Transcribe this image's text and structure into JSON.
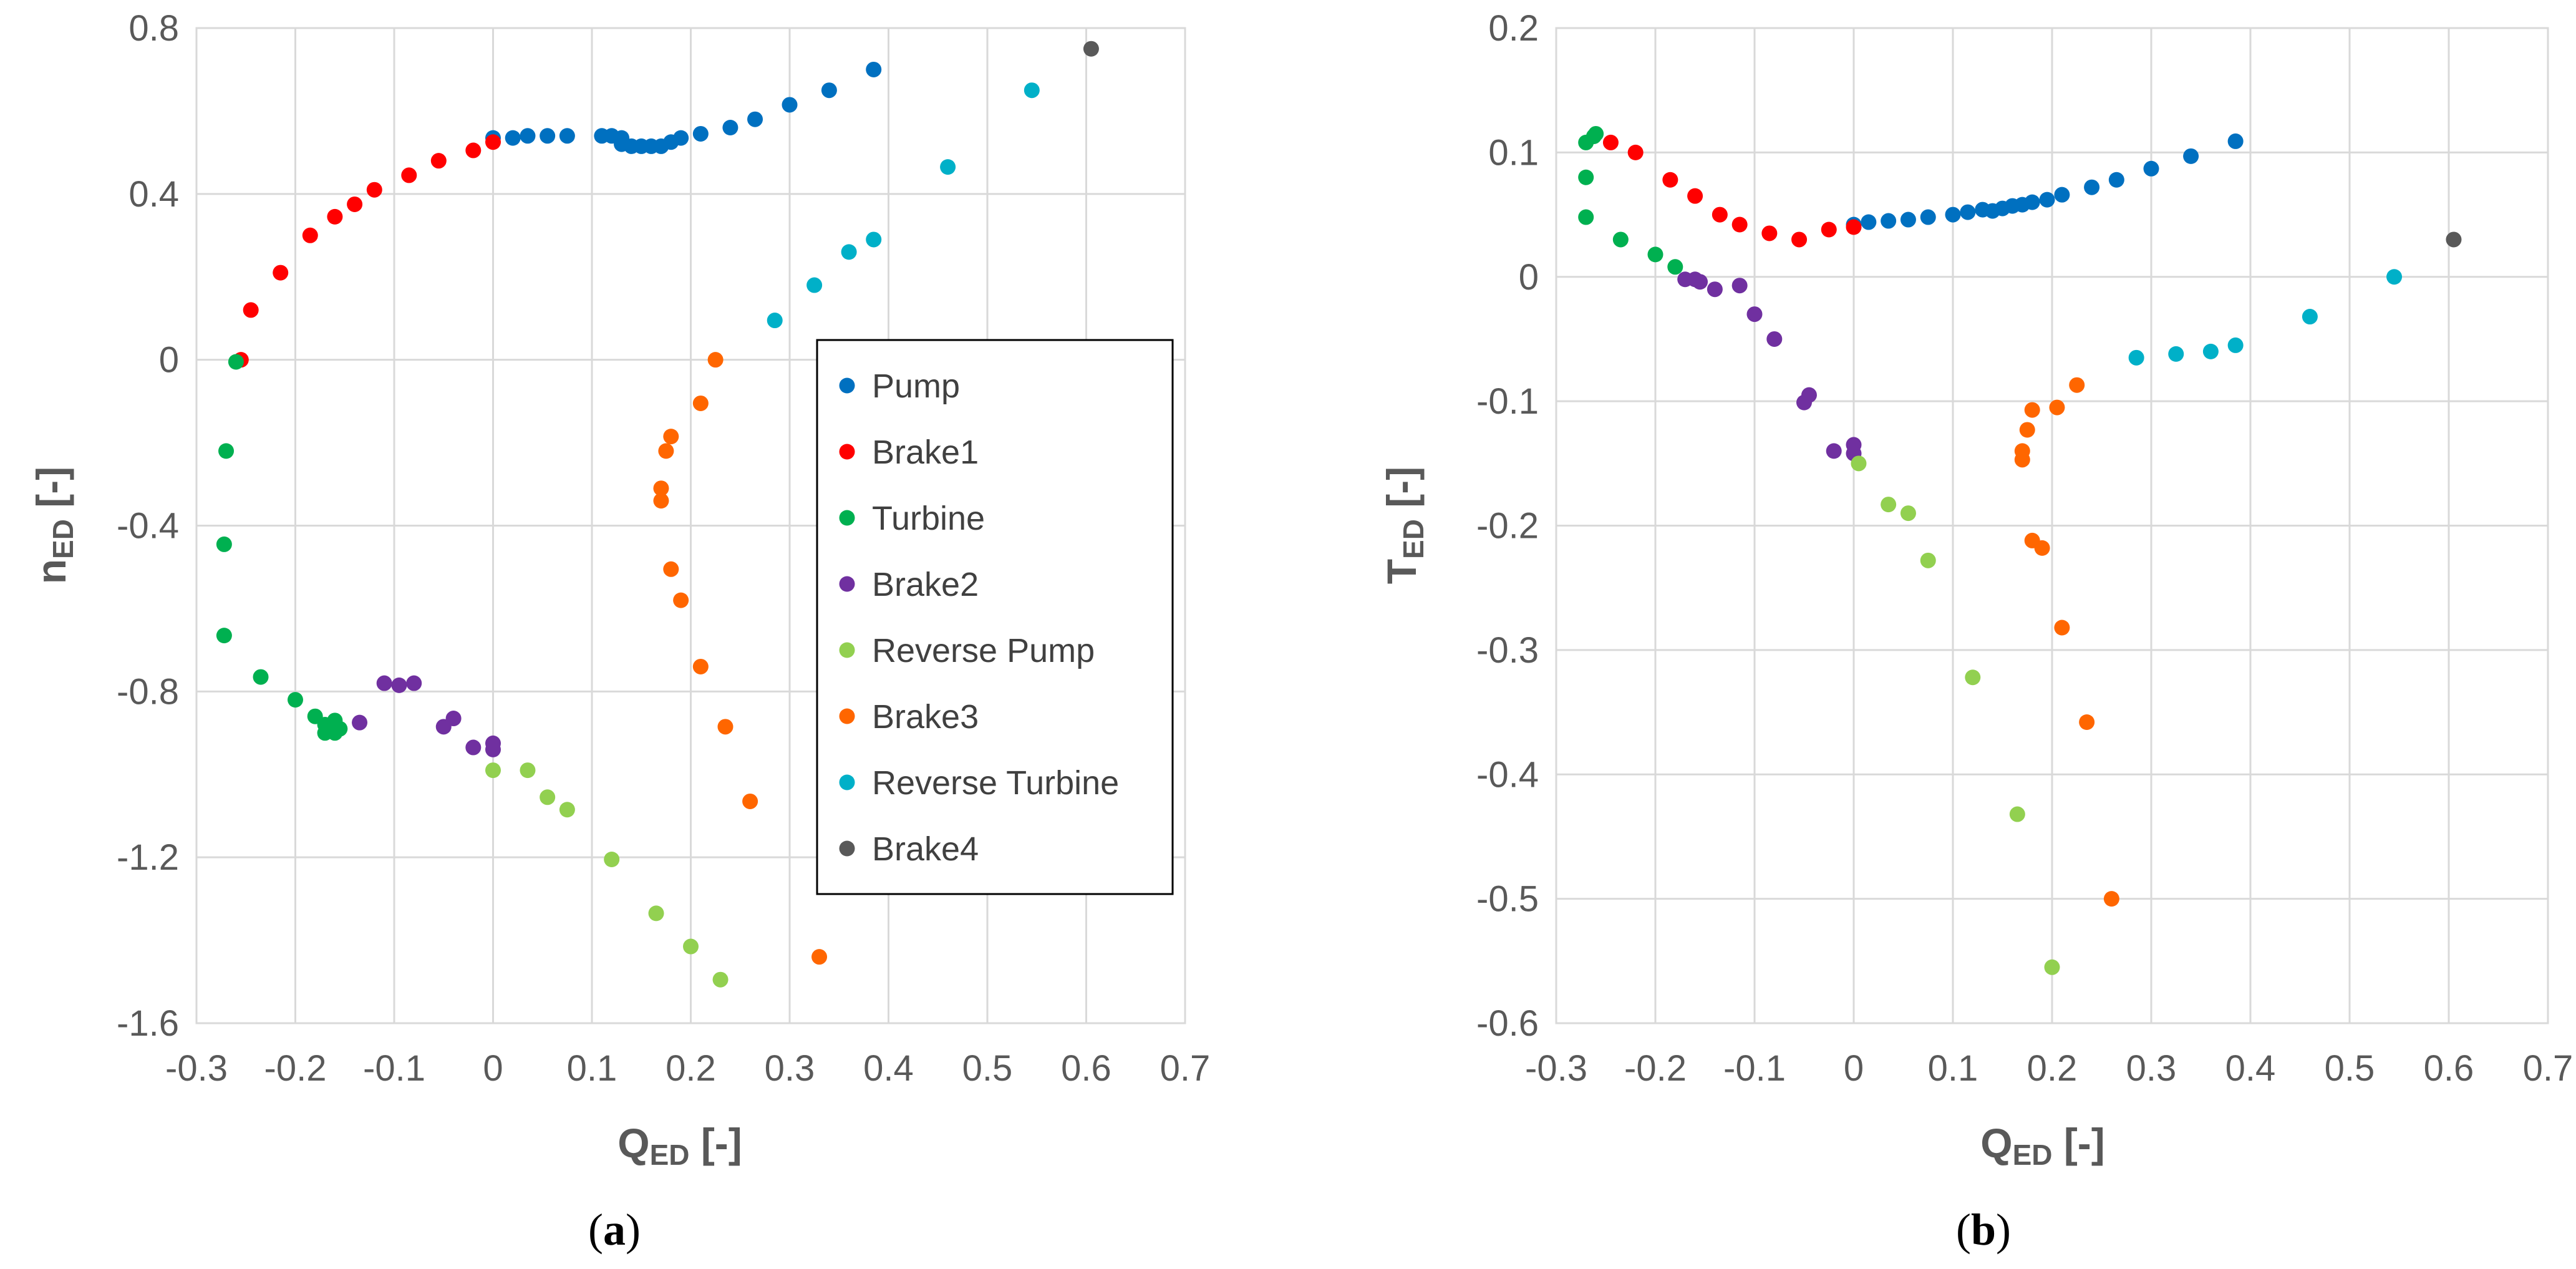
{
  "chart_data": [
    {
      "type": "scatter",
      "panel_label": "a",
      "xlabel": "Q",
      "xlabel_sub": "ED",
      "xlabel_suffix": " [-]",
      "ylabel": "n",
      "ylabel_sub": "ED",
      "ylabel_suffix": " [-]",
      "xlim": [
        -0.3,
        0.7
      ],
      "ylim": [
        -1.6,
        0.8
      ],
      "x_ticks": [
        "-0.3",
        "-0.2",
        "-0.1",
        "0",
        "0.1",
        "0.2",
        "0.3",
        "0.4",
        "0.5",
        "0.6",
        "0.7"
      ],
      "y_ticks": [
        "0.8",
        "0.4",
        "0",
        "-0.4",
        "-0.8",
        "-1.2",
        "-1.6"
      ],
      "grid": true,
      "legend_position": "center-right",
      "series": [
        {
          "name": "Pump",
          "color": "#0070C0",
          "points": [
            [
              0.0,
              0.535
            ],
            [
              0.02,
              0.535
            ],
            [
              0.035,
              0.54
            ],
            [
              0.055,
              0.54
            ],
            [
              0.075,
              0.54
            ],
            [
              0.11,
              0.54
            ],
            [
              0.12,
              0.54
            ],
            [
              0.13,
              0.535
            ],
            [
              0.13,
              0.52
            ],
            [
              0.14,
              0.515
            ],
            [
              0.15,
              0.515
            ],
            [
              0.16,
              0.515
            ],
            [
              0.17,
              0.515
            ],
            [
              0.18,
              0.525
            ],
            [
              0.19,
              0.535
            ],
            [
              0.21,
              0.545
            ],
            [
              0.24,
              0.56
            ],
            [
              0.265,
              0.58
            ],
            [
              0.3,
              0.615
            ],
            [
              0.34,
              0.65
            ],
            [
              0.385,
              0.7
            ]
          ]
        },
        {
          "name": "Brake1",
          "color": "#FF0000",
          "points": [
            [
              -0.255,
              0.0
            ],
            [
              -0.245,
              0.12
            ],
            [
              -0.215,
              0.21
            ],
            [
              -0.185,
              0.3
            ],
            [
              -0.16,
              0.345
            ],
            [
              -0.14,
              0.375
            ],
            [
              -0.12,
              0.41
            ],
            [
              -0.085,
              0.445
            ],
            [
              -0.055,
              0.48
            ],
            [
              -0.02,
              0.505
            ],
            [
              0.0,
              0.525
            ]
          ]
        },
        {
          "name": "Turbine",
          "color": "#00B050",
          "points": [
            [
              -0.26,
              -0.005
            ],
            [
              -0.27,
              -0.22
            ],
            [
              -0.272,
              -0.445
            ],
            [
              -0.272,
              -0.665
            ],
            [
              -0.235,
              -0.765
            ],
            [
              -0.2,
              -0.82
            ],
            [
              -0.18,
              -0.86
            ],
            [
              -0.17,
              -0.88
            ],
            [
              -0.165,
              -0.895
            ],
            [
              -0.16,
              -0.87
            ],
            [
              -0.155,
              -0.89
            ],
            [
              -0.16,
              -0.9
            ],
            [
              -0.17,
              -0.9
            ]
          ]
        },
        {
          "name": "Brake2",
          "color": "#7030A0",
          "points": [
            [
              -0.135,
              -0.875
            ],
            [
              -0.11,
              -0.78
            ],
            [
              -0.095,
              -0.785
            ],
            [
              -0.08,
              -0.78
            ],
            [
              -0.05,
              -0.885
            ],
            [
              -0.04,
              -0.865
            ],
            [
              -0.02,
              -0.935
            ],
            [
              0.0,
              -0.925
            ],
            [
              0.0,
              -0.94
            ]
          ]
        },
        {
          "name": "Reverse Pump",
          "color": "#92D050",
          "points": [
            [
              0.0,
              -0.99
            ],
            [
              0.035,
              -0.99
            ],
            [
              0.055,
              -1.055
            ],
            [
              0.075,
              -1.085
            ],
            [
              0.12,
              -1.205
            ],
            [
              0.165,
              -1.335
            ],
            [
              0.2,
              -1.415
            ],
            [
              0.23,
              -1.495
            ]
          ]
        },
        {
          "name": "Brake3",
          "color": "#FF6600",
          "points": [
            [
              0.225,
              0.0
            ],
            [
              0.21,
              -0.105
            ],
            [
              0.18,
              -0.185
            ],
            [
              0.175,
              -0.22
            ],
            [
              0.17,
              -0.31
            ],
            [
              0.17,
              -0.34
            ],
            [
              0.18,
              -0.505
            ],
            [
              0.19,
              -0.58
            ],
            [
              0.21,
              -0.74
            ],
            [
              0.235,
              -0.885
            ],
            [
              0.26,
              -1.065
            ],
            [
              0.33,
              -1.44
            ]
          ]
        },
        {
          "name": "Reverse Turbine",
          "color": "#00B0C8",
          "points": [
            [
              0.285,
              0.095
            ],
            [
              0.325,
              0.18
            ],
            [
              0.36,
              0.26
            ],
            [
              0.385,
              0.29
            ],
            [
              0.46,
              0.465
            ],
            [
              0.545,
              0.65
            ]
          ]
        },
        {
          "name": "Brake4",
          "color": "#595959",
          "points": [
            [
              0.605,
              0.75
            ]
          ]
        }
      ]
    },
    {
      "type": "scatter",
      "panel_label": "b",
      "xlabel": "Q",
      "xlabel_sub": "ED",
      "xlabel_suffix": " [-]",
      "ylabel": "T",
      "ylabel_sub": "ED",
      "ylabel_suffix": " [-]",
      "xlim": [
        -0.3,
        0.7
      ],
      "ylim": [
        -0.6,
        0.2
      ],
      "x_ticks": [
        "-0.3",
        "-0.2",
        "-0.1",
        "0",
        "0.1",
        "0.2",
        "0.3",
        "0.4",
        "0.5",
        "0.6",
        "0.7"
      ],
      "y_ticks": [
        "0.2",
        "0.1",
        "0",
        "-0.1",
        "-0.2",
        "-0.3",
        "-0.4",
        "-0.5",
        "-0.6"
      ],
      "grid": true,
      "legend_position": "none",
      "series": [
        {
          "name": "Pump",
          "color": "#0070C0",
          "points": [
            [
              0.0,
              0.042
            ],
            [
              0.015,
              0.044
            ],
            [
              0.035,
              0.045
            ],
            [
              0.055,
              0.046
            ],
            [
              0.075,
              0.048
            ],
            [
              0.1,
              0.05
            ],
            [
              0.115,
              0.052
            ],
            [
              0.13,
              0.054
            ],
            [
              0.14,
              0.053
            ],
            [
              0.15,
              0.055
            ],
            [
              0.16,
              0.057
            ],
            [
              0.17,
              0.058
            ],
            [
              0.18,
              0.06
            ],
            [
              0.195,
              0.062
            ],
            [
              0.21,
              0.066
            ],
            [
              0.24,
              0.072
            ],
            [
              0.265,
              0.078
            ],
            [
              0.3,
              0.087
            ],
            [
              0.34,
              0.097
            ],
            [
              0.385,
              0.109
            ]
          ]
        },
        {
          "name": "Brake1",
          "color": "#FF0000",
          "points": [
            [
              -0.245,
              0.108
            ],
            [
              -0.22,
              0.1
            ],
            [
              -0.185,
              0.078
            ],
            [
              -0.16,
              0.065
            ],
            [
              -0.135,
              0.05
            ],
            [
              -0.115,
              0.042
            ],
            [
              -0.085,
              0.035
            ],
            [
              -0.055,
              0.03
            ],
            [
              -0.025,
              0.038
            ],
            [
              0.0,
              0.04
            ]
          ]
        },
        {
          "name": "Turbine",
          "color": "#00B050",
          "points": [
            [
              -0.26,
              0.115
            ],
            [
              -0.262,
              0.113
            ],
            [
              -0.27,
              0.108
            ],
            [
              -0.27,
              0.08
            ],
            [
              -0.27,
              0.048
            ],
            [
              -0.235,
              0.03
            ],
            [
              -0.2,
              0.018
            ],
            [
              -0.18,
              0.008
            ]
          ]
        },
        {
          "name": "Brake2",
          "color": "#7030A0",
          "points": [
            [
              -0.17,
              -0.002
            ],
            [
              -0.16,
              -0.002
            ],
            [
              -0.155,
              -0.004
            ],
            [
              -0.14,
              -0.01
            ],
            [
              -0.115,
              -0.007
            ],
            [
              -0.1,
              -0.03
            ],
            [
              -0.08,
              -0.05
            ],
            [
              -0.05,
              -0.101
            ],
            [
              -0.045,
              -0.095
            ],
            [
              -0.02,
              -0.14
            ],
            [
              0.0,
              -0.135
            ],
            [
              0.0,
              -0.142
            ]
          ]
        },
        {
          "name": "Reverse Pump",
          "color": "#92D050",
          "points": [
            [
              0.005,
              -0.15
            ],
            [
              0.035,
              -0.183
            ],
            [
              0.055,
              -0.19
            ],
            [
              0.075,
              -0.228
            ],
            [
              0.12,
              -0.322
            ],
            [
              0.165,
              -0.432
            ],
            [
              0.2,
              -0.555
            ]
          ]
        },
        {
          "name": "Brake3",
          "color": "#FF6600",
          "points": [
            [
              0.225,
              -0.087
            ],
            [
              0.205,
              -0.105
            ],
            [
              0.18,
              -0.107
            ],
            [
              0.175,
              -0.123
            ],
            [
              0.17,
              -0.14
            ],
            [
              0.17,
              -0.147
            ],
            [
              0.18,
              -0.212
            ],
            [
              0.19,
              -0.218
            ],
            [
              0.21,
              -0.282
            ],
            [
              0.235,
              -0.358
            ],
            [
              0.26,
              -0.5
            ]
          ]
        },
        {
          "name": "Reverse Turbine",
          "color": "#00B0C8",
          "points": [
            [
              0.285,
              -0.065
            ],
            [
              0.325,
              -0.062
            ],
            [
              0.36,
              -0.06
            ],
            [
              0.385,
              -0.055
            ],
            [
              0.46,
              -0.032
            ],
            [
              0.545,
              0.0
            ]
          ]
        },
        {
          "name": "Brake4",
          "color": "#595959",
          "points": [
            [
              0.605,
              0.03
            ]
          ]
        }
      ]
    }
  ]
}
